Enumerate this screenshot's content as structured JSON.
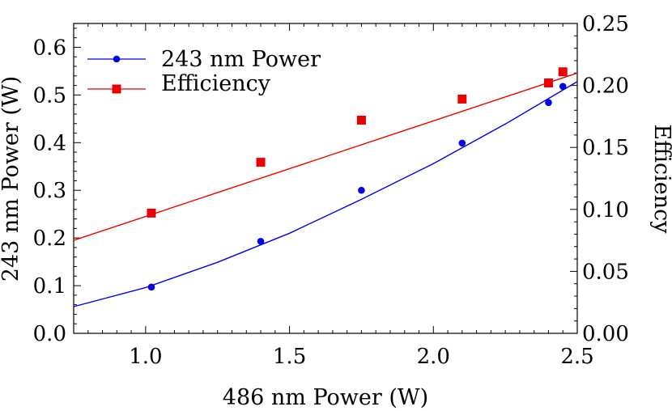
{
  "chart_data": {
    "type": "scatter",
    "title": "",
    "xlabel": "486 nm Power (W)",
    "ylabel": "243 nm Power (W)",
    "y2label": "Efficiency",
    "xlim": [
      0.75,
      2.5
    ],
    "ylim": [
      0.0,
      0.65
    ],
    "y2lim": [
      0.0,
      0.25
    ],
    "x_ticks": [
      "1.0",
      "1.5",
      "2.0",
      "2.5"
    ],
    "x_tick_values": [
      1.0,
      1.5,
      2.0,
      2.5
    ],
    "y_ticks": [
      "0.0",
      "0.1",
      "0.2",
      "0.3",
      "0.4",
      "0.5",
      "0.6"
    ],
    "y_tick_values": [
      0.0,
      0.1,
      0.2,
      0.3,
      0.4,
      0.5,
      0.6
    ],
    "y2_ticks": [
      "0.00",
      "0.05",
      "0.10",
      "0.15",
      "0.20",
      "0.25"
    ],
    "y2_tick_values": [
      0.0,
      0.05,
      0.1,
      0.15,
      0.2,
      0.25
    ],
    "grid": false,
    "legend_position": "top-left",
    "series": [
      {
        "name": "243 nm Power",
        "axis": "left",
        "color": "#0000ee",
        "marker": "circle",
        "x": [
          1.02,
          1.4,
          1.75,
          2.1,
          2.4,
          2.45
        ],
        "y": [
          0.097,
          0.193,
          0.3,
          0.399,
          0.484,
          0.518
        ],
        "fit_x": [
          0.75,
          1.0,
          1.25,
          1.5,
          1.75,
          2.0,
          2.25,
          2.5
        ],
        "fit_y": [
          0.056,
          0.096,
          0.149,
          0.21,
          0.281,
          0.356,
          0.439,
          0.528
        ]
      },
      {
        "name": "Efficiency",
        "axis": "right",
        "color": "#ee0000",
        "marker": "square",
        "x": [
          1.02,
          1.4,
          1.75,
          2.1,
          2.4,
          2.45
        ],
        "y": [
          0.097,
          0.138,
          0.172,
          0.189,
          0.202,
          0.211
        ],
        "fit_x": [
          0.75,
          2.5
        ],
        "fit_y": [
          0.075,
          0.21
        ]
      }
    ]
  }
}
